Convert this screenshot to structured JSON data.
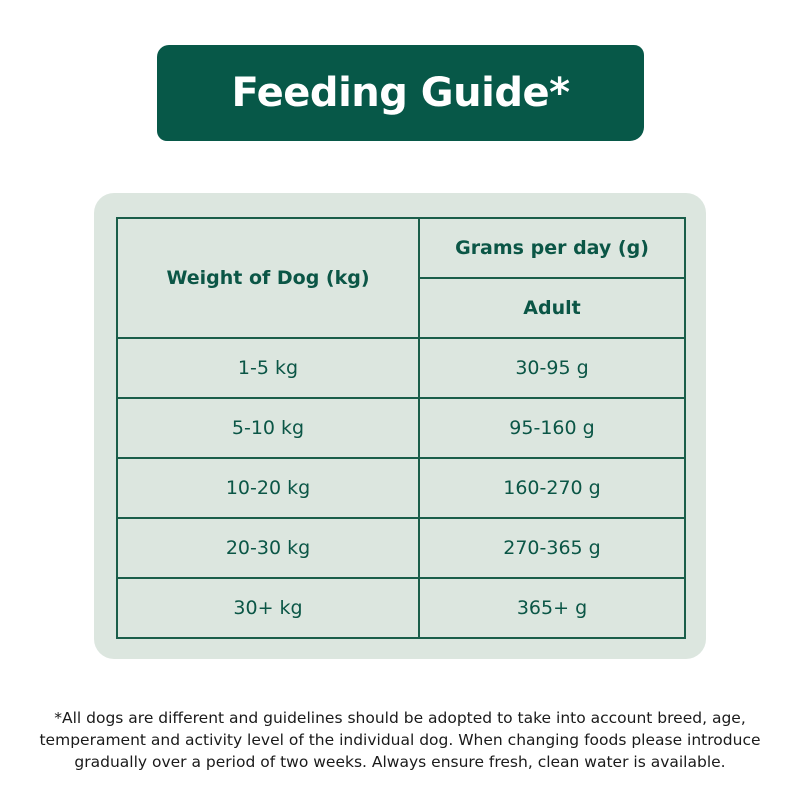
{
  "banner": {
    "title": "Feeding Guide*"
  },
  "colors": {
    "banner_bg": "#075848",
    "card_bg": "#dce6df",
    "table_line": "#1a5e4a",
    "table_text": "#0b5646",
    "banner_text": "#ffffff"
  },
  "table": {
    "headers": {
      "weight": "Weight of Dog (kg)",
      "grams": "Grams per day (g)",
      "adult": "Adult"
    },
    "rows": [
      {
        "weight": "1-5 kg",
        "grams": "30-95 g"
      },
      {
        "weight": "5-10 kg",
        "grams": "95-160 g"
      },
      {
        "weight": "10-20 kg",
        "grams": "160-270 g"
      },
      {
        "weight": "20-30 kg",
        "grams": "270-365 g"
      },
      {
        "weight": "30+ kg",
        "grams": "365+ g"
      }
    ]
  },
  "footnote": {
    "lines": [
      "*All dogs are different and guidelines should be adopted to take into account breed, age,",
      "temperament and activity level of the individual dog. When changing foods please introduce",
      "gradually over a period of two weeks. Always ensure fresh, clean water is available."
    ]
  }
}
